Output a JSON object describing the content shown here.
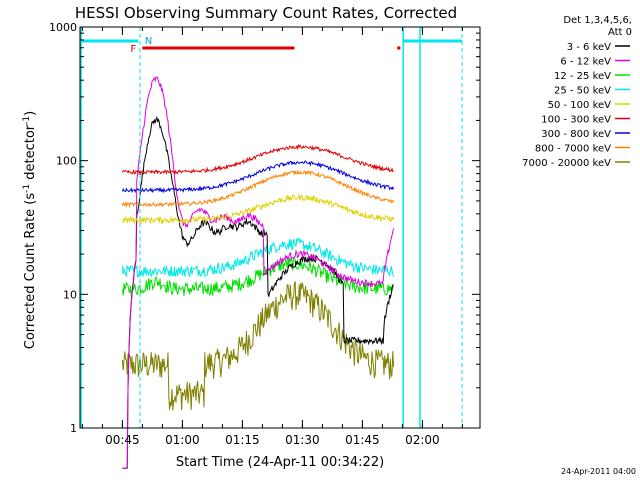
{
  "chart_data": {
    "type": "line",
    "title": "HESSI Observing Summary Count Rates, Corrected",
    "xlabel": "Start Time (24-Apr-11 00:34:22)",
    "ylabel_main": "Corrected Count Rate (s",
    "ylabel_sup": "-1",
    "ylabel_tail": " detector",
    "ylabel_end": ")",
    "y_scale": "log",
    "ylim": [
      1,
      1000
    ],
    "xlim_minutes": [
      0,
      100
    ],
    "x_ticks": [
      {
        "t": 10.6,
        "label": "00:45"
      },
      {
        "t": 25.6,
        "label": "01:00"
      },
      {
        "t": 40.6,
        "label": "01:15"
      },
      {
        "t": 55.6,
        "label": "01:30"
      },
      {
        "t": 70.6,
        "label": "01:45"
      },
      {
        "t": 85.6,
        "label": "02:00"
      }
    ],
    "y_ticks": [
      {
        "v": 1,
        "label": "1"
      },
      {
        "v": 10,
        "label": "10"
      },
      {
        "v": 100,
        "label": "100"
      },
      {
        "v": 1000,
        "label": "1000"
      }
    ],
    "legend_header": [
      "Det 1,3,4,5,6,",
      "Att 0"
    ],
    "series": [
      {
        "name": "3 - 6 keV",
        "color": "#000000"
      },
      {
        "name": "6 - 12 keV",
        "color": "#e000e0"
      },
      {
        "name": "12 - 25 keV",
        "color": "#00e000"
      },
      {
        "name": "25 - 50 keV",
        "color": "#00e8e8"
      },
      {
        "name": "50 - 100 keV",
        "color": "#e0d000"
      },
      {
        "name": "100 - 300 keV",
        "color": "#e00000"
      },
      {
        "name": "300 - 800 keV",
        "color": "#0000e0"
      },
      {
        "name": "800 - 7000 keV",
        "color": "#ff8000"
      },
      {
        "name": "7000 - 20000 keV",
        "color": "#808000"
      }
    ],
    "flags": {
      "flare_label": "F",
      "night_label": "N"
    },
    "timestamp": "24-Apr-2011 04:00"
  }
}
